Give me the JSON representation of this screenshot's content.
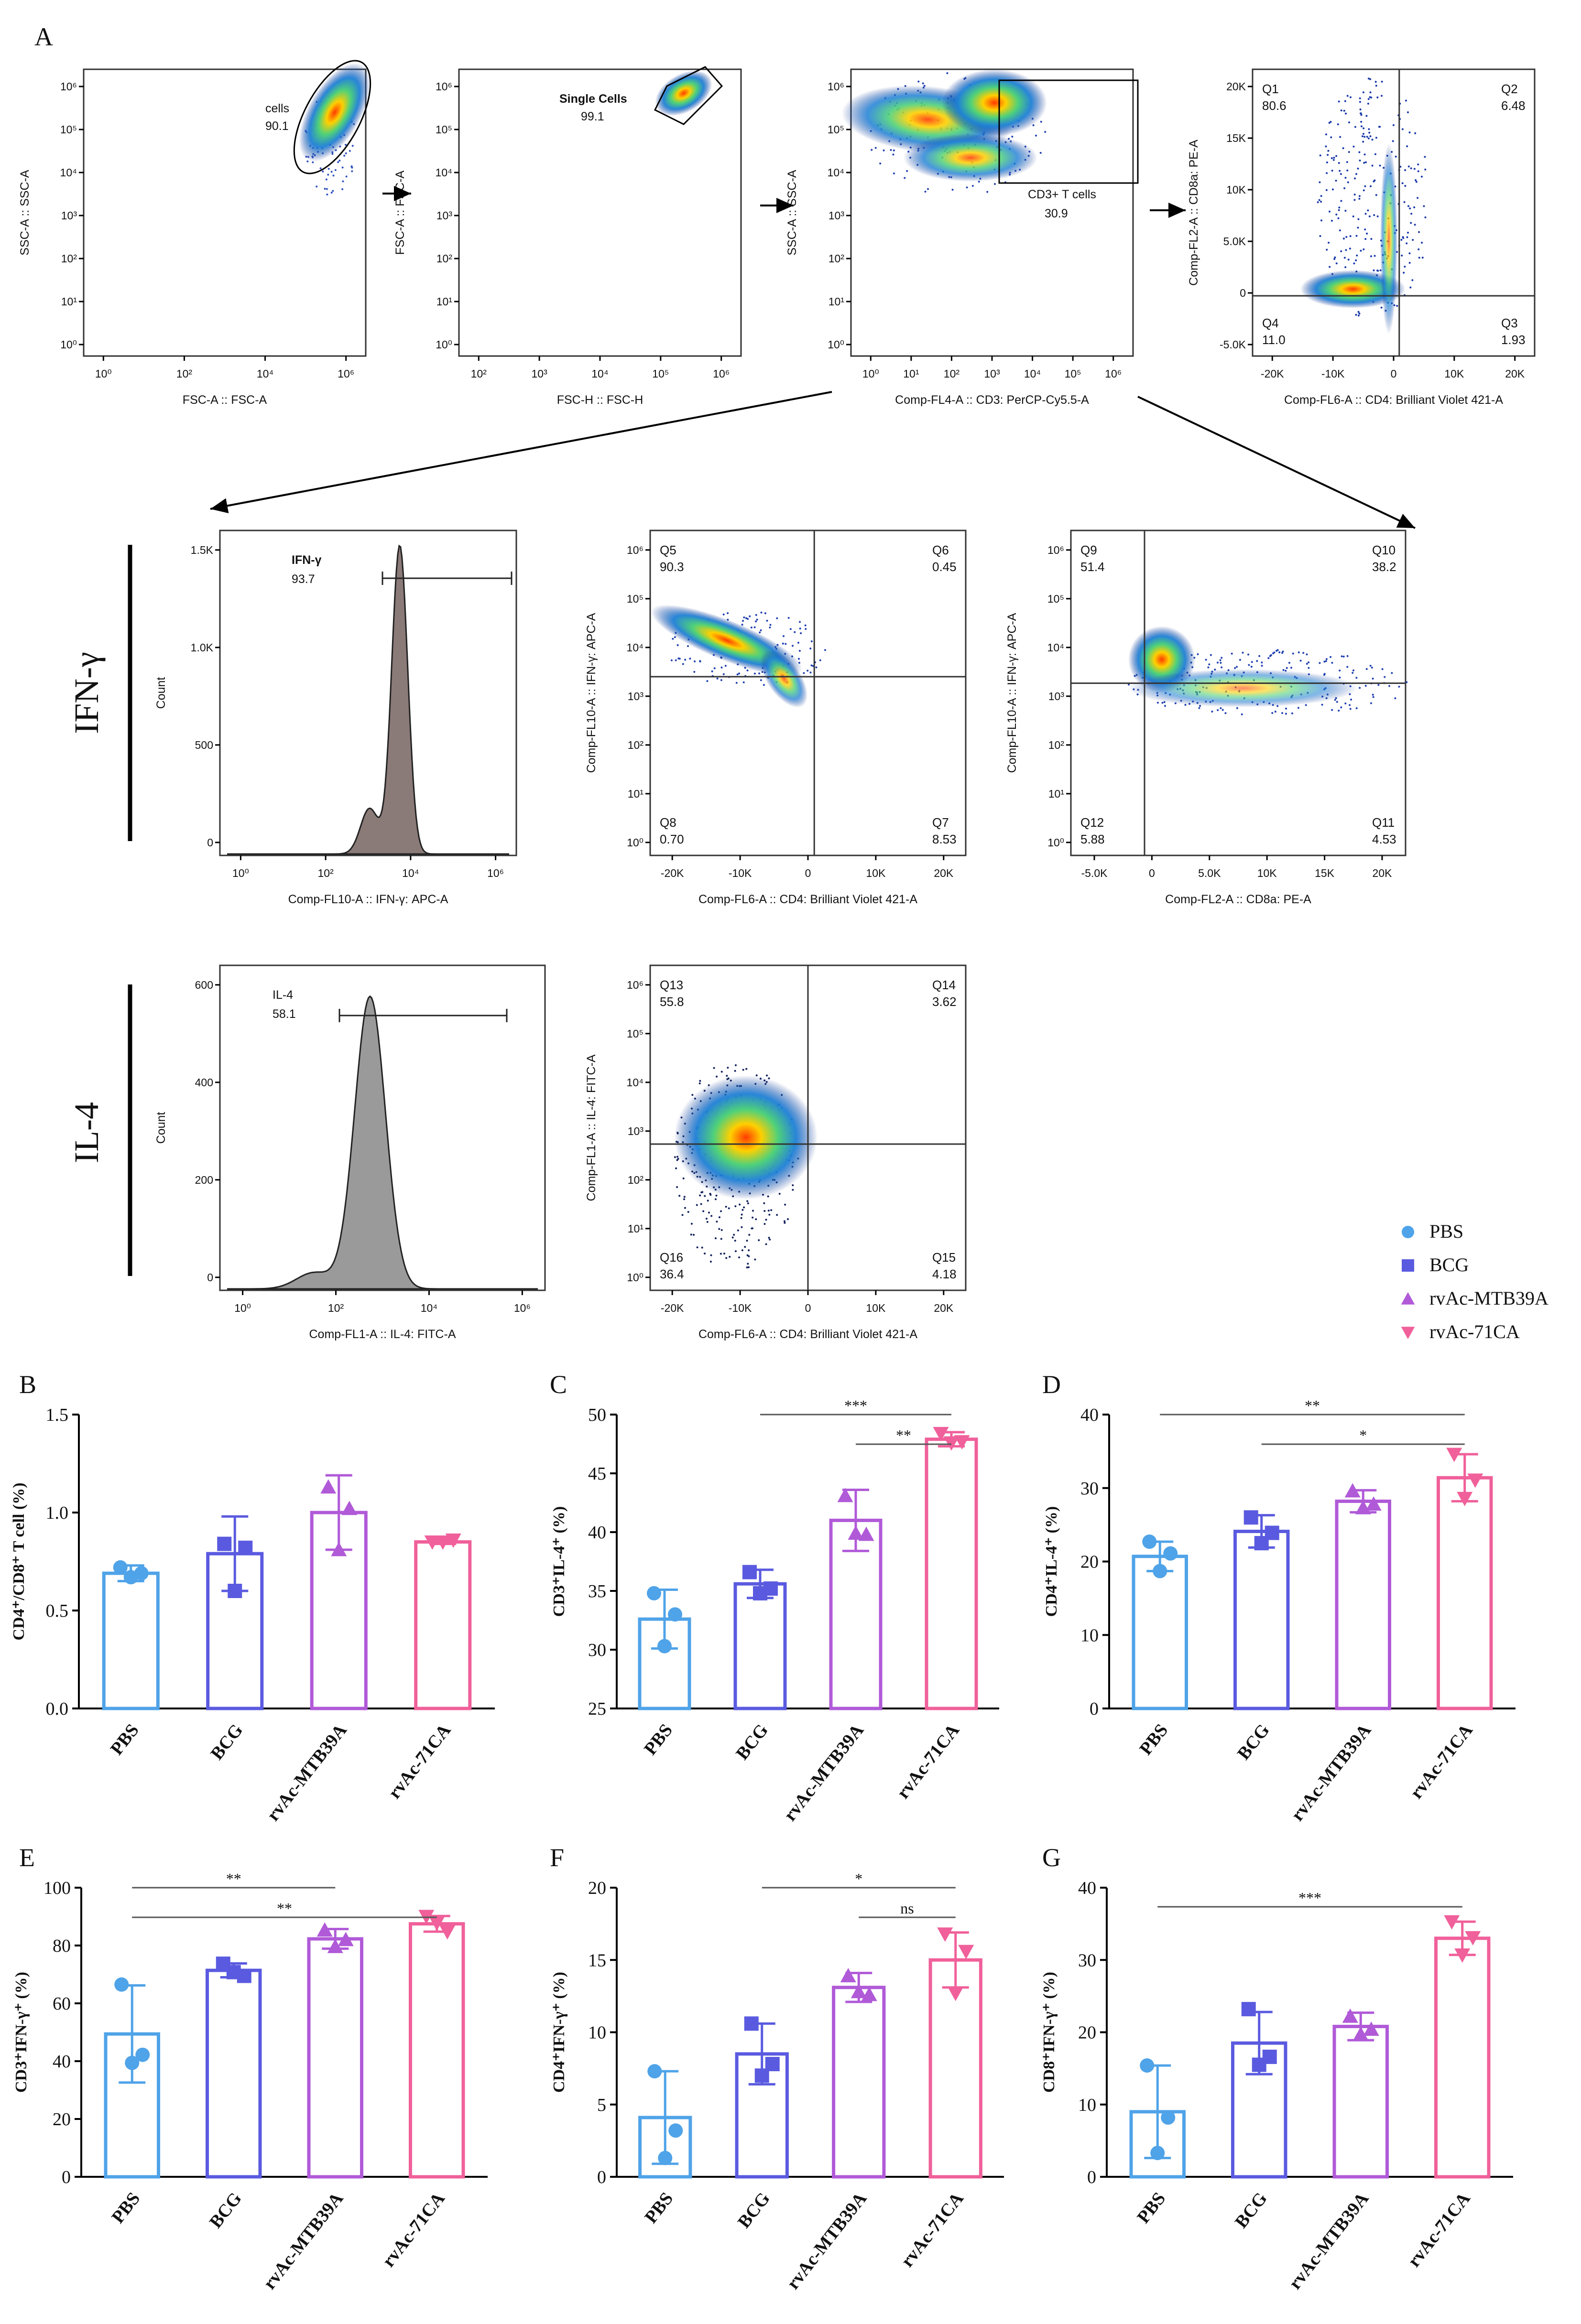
{
  "figure": {
    "panel_letters": [
      "A",
      "B",
      "C",
      "D",
      "E",
      "F",
      "G"
    ],
    "row_labels": {
      "ifng": "IFN-γ",
      "il4": "IL-4"
    },
    "legend": [
      {
        "label": "PBS",
        "color": "#4fa3e8",
        "marker": "circle"
      },
      {
        "label": "BCG",
        "color": "#5a5ae0",
        "marker": "square"
      },
      {
        "label": "rvAc-MTB39A",
        "color": "#b05ad8",
        "marker": "triangle-up"
      },
      {
        "label": "rvAc-71CA",
        "color": "#f0609a",
        "marker": "triangle-down"
      }
    ]
  },
  "flow_panels": [
    {
      "id": "fsc-ssc",
      "xlabel": "FSC-A :: FSC-A",
      "ylabel": "SSC-A :: SSC-A",
      "xticks": [
        "10⁰",
        "10²",
        "10⁴",
        "10⁶"
      ],
      "yticks": [
        "10⁰",
        "10¹",
        "10²",
        "10³",
        "10⁴",
        "10⁵",
        "10⁶"
      ],
      "gate_name": "cells",
      "gate_value": "90.1"
    },
    {
      "id": "fsch",
      "xlabel": "FSC-H :: FSC-H",
      "ylabel": "FSC-A :: FSC-A",
      "xticks": [
        "10²",
        "10³",
        "10⁴",
        "10⁵",
        "10⁶"
      ],
      "yticks": [
        "10⁰",
        "10¹",
        "10²",
        "10³",
        "10⁴",
        "10⁵",
        "10⁶"
      ],
      "gate_name": "Single Cells",
      "gate_value": "99.1"
    },
    {
      "id": "cd3",
      "xlabel": "Comp-FL4-A :: CD3: PerCP-Cy5.5-A",
      "ylabel": "SSC-A :: SSC-A",
      "xticks": [
        "10⁰",
        "10¹",
        "10²",
        "10³",
        "10⁴",
        "10⁵",
        "10⁶"
      ],
      "yticks": [
        "10⁰",
        "10¹",
        "10²",
        "10³",
        "10⁴",
        "10⁵",
        "10⁶"
      ],
      "gate_name": "CD3+ T cells",
      "gate_value": "30.9"
    },
    {
      "id": "cd4cd8",
      "xlabel": "Comp-FL6-A :: CD4: Brilliant Violet 421-A",
      "ylabel": "Comp-FL2-A :: CD8a: PE-A",
      "xticks": [
        "-20K",
        "-10K",
        "0",
        "10K",
        "20K"
      ],
      "yticks": [
        "-5.0K",
        "0",
        "5.0K",
        "10K",
        "15K",
        "20K"
      ],
      "quadrants": [
        {
          "name": "Q1",
          "value": "80.6"
        },
        {
          "name": "Q2",
          "value": "6.48"
        },
        {
          "name": "Q3",
          "value": "1.93"
        },
        {
          "name": "Q4",
          "value": "11.0"
        }
      ]
    },
    {
      "id": "ifng-hist",
      "xlabel": "Comp-FL10-A :: IFN-γ: APC-A",
      "ylabel": "Count",
      "xticks": [
        "10⁰",
        "10²",
        "10⁴",
        "10⁶"
      ],
      "yticks": [
        "0",
        "500",
        "1.0K",
        "1.5K"
      ],
      "gate_name": "IFN-γ",
      "gate_value": "93.7"
    },
    {
      "id": "ifng-cd4",
      "xlabel": "Comp-FL6-A :: CD4: Brilliant Violet 421-A",
      "ylabel": "Comp-FL10-A :: IFN-γ: APC-A",
      "xticks": [
        "-20K",
        "-10K",
        "0",
        "10K",
        "20K"
      ],
      "yticks": [
        "10⁰",
        "10¹",
        "10²",
        "10³",
        "10⁴",
        "10⁵",
        "10⁶"
      ],
      "quadrants": [
        {
          "name": "Q5",
          "value": "90.3"
        },
        {
          "name": "Q6",
          "value": "0.45"
        },
        {
          "name": "Q7",
          "value": "8.53"
        },
        {
          "name": "Q8",
          "value": "0.70"
        }
      ]
    },
    {
      "id": "ifng-cd8",
      "xlabel": "Comp-FL2-A :: CD8a: PE-A",
      "ylabel": "Comp-FL10-A :: IFN-γ: APC-A",
      "xticks": [
        "-5.0K",
        "0",
        "5.0K",
        "10K",
        "15K",
        "20K"
      ],
      "yticks": [
        "10⁰",
        "10¹",
        "10²",
        "10³",
        "10⁴",
        "10⁵",
        "10⁶"
      ],
      "quadrants": [
        {
          "name": "Q9",
          "value": "51.4"
        },
        {
          "name": "Q10",
          "value": "38.2"
        },
        {
          "name": "Q11",
          "value": "4.53"
        },
        {
          "name": "Q12",
          "value": "5.88"
        }
      ]
    },
    {
      "id": "il4-hist",
      "xlabel": "Comp-FL1-A :: IL-4: FITC-A",
      "ylabel": "Count",
      "xticks": [
        "10⁰",
        "10²",
        "10⁴",
        "10⁶"
      ],
      "yticks": [
        "0",
        "200",
        "400",
        "600"
      ],
      "gate_name": "IL-4",
      "gate_value": "58.1"
    },
    {
      "id": "il4-cd4",
      "xlabel": "Comp-FL6-A :: CD4: Brilliant Violet 421-A",
      "ylabel": "Comp-FL1-A :: IL-4: FITC-A",
      "xticks": [
        "-20K",
        "-10K",
        "0",
        "10K",
        "20K"
      ],
      "yticks": [
        "10⁰",
        "10¹",
        "10²",
        "10³",
        "10⁴",
        "10⁵",
        "10⁶"
      ],
      "quadrants": [
        {
          "name": "Q13",
          "value": "55.8"
        },
        {
          "name": "Q14",
          "value": "3.62"
        },
        {
          "name": "Q15",
          "value": "4.18"
        },
        {
          "name": "Q16",
          "value": "36.4"
        }
      ]
    }
  ],
  "chart_data": [
    {
      "panel": "B",
      "type": "bar",
      "categories": [
        "PBS",
        "BCG",
        "rvAc-MTB39A",
        "rvAc-71CA"
      ],
      "ylabel": "CD4⁺/CD8⁺ T cell (%)",
      "ylim": [
        0,
        1.5
      ],
      "yticks": [
        "0.0",
        "0.5",
        "1.0",
        "1.5"
      ],
      "values": [
        0.69,
        0.79,
        1.0,
        0.85
      ],
      "errors": [
        0.04,
        0.19,
        0.19,
        0.01
      ],
      "points": [
        [
          0.72,
          0.69,
          0.67
        ],
        [
          0.84,
          0.82,
          0.6
        ],
        [
          1.13,
          1.02,
          0.81
        ],
        [
          0.85,
          0.86,
          0.85
        ]
      ],
      "significance": []
    },
    {
      "panel": "C",
      "type": "bar",
      "categories": [
        "PBS",
        "BCG",
        "rvAc-MTB39A",
        "rvAc-71CA"
      ],
      "ylabel": "CD3⁺IL-4⁺ (%)",
      "ylim": [
        25,
        50
      ],
      "yticks": [
        "25",
        "30",
        "35",
        "40",
        "45",
        "50"
      ],
      "values": [
        32.6,
        35.6,
        41.0,
        47.9
      ],
      "errors": [
        2.5,
        1.2,
        2.6,
        0.6
      ],
      "points": [
        [
          34.8,
          33.0,
          30.3
        ],
        [
          36.6,
          35.2,
          34.8
        ],
        [
          43.1,
          39.8,
          39.9
        ],
        [
          48.4,
          47.7,
          47.6
        ]
      ],
      "significance": [
        {
          "from": 1,
          "to": 3,
          "label": "***"
        },
        {
          "from": 2,
          "to": 3,
          "label": "**"
        }
      ]
    },
    {
      "panel": "D",
      "type": "bar",
      "categories": [
        "PBS",
        "BCG",
        "rvAc-MTB39A",
        "rvAc-71CA"
      ],
      "ylabel": "CD4⁺IL-4⁺ (%)",
      "ylim": [
        0,
        40
      ],
      "yticks": [
        "0",
        "10",
        "20",
        "30",
        "40"
      ],
      "values": [
        20.7,
        24.1,
        28.2,
        31.4
      ],
      "errors": [
        2.0,
        2.2,
        1.5,
        3.2
      ],
      "points": [
        [
          22.7,
          21.1,
          18.7
        ],
        [
          26.0,
          23.9,
          22.5
        ],
        [
          29.6,
          27.8,
          27.3
        ],
        [
          34.6,
          31.1,
          28.6
        ]
      ],
      "significance": [
        {
          "from": 0,
          "to": 3,
          "label": "**"
        },
        {
          "from": 1,
          "to": 3,
          "label": "*"
        }
      ]
    },
    {
      "panel": "E",
      "type": "bar",
      "categories": [
        "PBS",
        "BCG",
        "rvAc-MTB39A",
        "rvAc-71CA"
      ],
      "ylabel": "CD3⁺IFN-γ⁺ (%)",
      "ylim": [
        0,
        100
      ],
      "yticks": [
        "0",
        "20",
        "40",
        "60",
        "80",
        "100"
      ],
      "values": [
        49.4,
        71.4,
        82.3,
        87.5
      ],
      "errors": [
        16.8,
        2.4,
        3.4,
        2.7
      ],
      "points": [
        [
          66.5,
          42.2,
          39.4
        ],
        [
          73.7,
          69.5,
          70.8
        ],
        [
          85.3,
          82.0,
          79.6
        ],
        [
          90.1,
          84.8,
          87.8
        ]
      ],
      "significance": [
        {
          "from": 0,
          "to": 2,
          "label": "**"
        },
        {
          "from": 0,
          "to": 3,
          "label": "**"
        }
      ]
    },
    {
      "panel": "F",
      "type": "bar",
      "categories": [
        "PBS",
        "BCG",
        "rvAc-MTB39A",
        "rvAc-71CA"
      ],
      "ylabel": "CD4⁺IFN-γ⁺ (%)",
      "ylim": [
        0,
        20
      ],
      "yticks": [
        "0",
        "5",
        "10",
        "15",
        "20"
      ],
      "values": [
        4.1,
        8.5,
        13.1,
        15.0
      ],
      "errors": [
        3.2,
        2.1,
        1.0,
        1.9
      ],
      "points": [
        [
          7.3,
          3.2,
          1.3
        ],
        [
          10.6,
          7.8,
          7.0
        ],
        [
          13.9,
          12.6,
          12.8
        ],
        [
          16.8,
          15.6,
          12.7
        ]
      ],
      "significance": [
        {
          "from": 1,
          "to": 3,
          "label": "*"
        },
        {
          "from": 2,
          "to": 3,
          "label": "ns"
        }
      ]
    },
    {
      "panel": "G",
      "type": "bar",
      "categories": [
        "PBS",
        "BCG",
        "rvAc-MTB39A",
        "rvAc-71CA"
      ],
      "ylabel": "CD8⁺IFN-γ⁺ (%)",
      "ylim": [
        0,
        40
      ],
      "yticks": [
        "0",
        "10",
        "20",
        "30",
        "40"
      ],
      "values": [
        9.0,
        18.5,
        20.8,
        33.0
      ],
      "errors": [
        6.4,
        4.3,
        1.9,
        2.3
      ],
      "points": [
        [
          15.4,
          8.2,
          3.3
        ],
        [
          23.2,
          16.6,
          15.5
        ],
        [
          22.2,
          20.4,
          19.7
        ],
        [
          35.3,
          33.1,
          30.7
        ]
      ],
      "significance": [
        {
          "from": 0,
          "to": 3,
          "label": "***"
        }
      ]
    }
  ]
}
